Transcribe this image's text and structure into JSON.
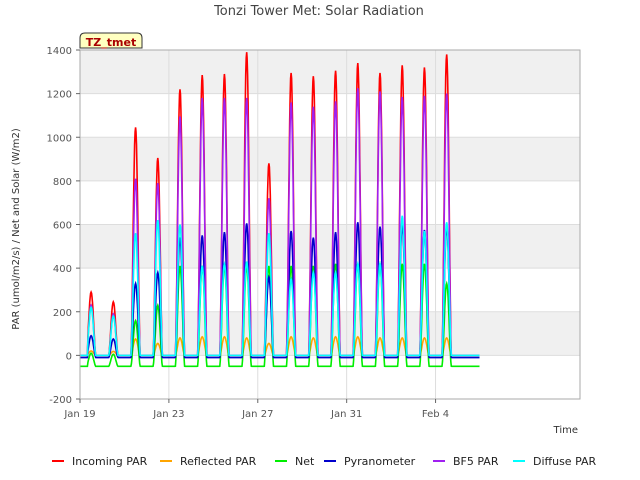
{
  "chart_data": {
    "type": "line",
    "title": "Tonzi Tower Met: Solar Radiation",
    "xlabel": "Time",
    "ylabel": "PAR (umol/m2/s) / Net and Solar (W/m2)",
    "badge": "TZ_tmet",
    "ylim": [
      -200,
      1400
    ],
    "yticks": [
      -200,
      0,
      200,
      400,
      600,
      800,
      1000,
      1200,
      1400
    ],
    "xlim": [
      0,
      22.5
    ],
    "xticks": [
      {
        "value": 0,
        "label": "Jan 19"
      },
      {
        "value": 4,
        "label": "Jan 23"
      },
      {
        "value": 8,
        "label": "Jan 27"
      },
      {
        "value": 12,
        "label": "Jan 31"
      },
      {
        "value": 16,
        "label": "Feb 4"
      }
    ],
    "x_unit_note": "x values are day positions on the time axis, day 0 = Jan 19 00:00",
    "grid": true,
    "legend_position": "bottom",
    "days": [
      0,
      1,
      2,
      3,
      4,
      5,
      6,
      7,
      8,
      9,
      10,
      11,
      12,
      13,
      14,
      15,
      16,
      17
    ],
    "series": [
      {
        "name": "Incoming PAR",
        "color": "#ff0000",
        "daily_peak": [
          290,
          245,
          1045,
          905,
          1220,
          1285,
          1290,
          1390,
          880,
          1295,
          1280,
          1305,
          1340,
          1295,
          1330,
          1320,
          1380,
          0
        ],
        "night": 0
      },
      {
        "name": "Reflected PAR",
        "color": "#ffa500",
        "daily_peak": [
          20,
          18,
          75,
          55,
          80,
          85,
          85,
          80,
          55,
          85,
          80,
          85,
          85,
          80,
          80,
          80,
          80,
          0
        ],
        "night": 0
      },
      {
        "name": "Net",
        "color": "#00ee00",
        "daily_peak": [
          10,
          5,
          160,
          230,
          410,
          410,
          410,
          410,
          410,
          410,
          410,
          420,
          420,
          420,
          420,
          420,
          330,
          0
        ],
        "night": -50
      },
      {
        "name": "Pyranometer",
        "color": "#0000cc",
        "daily_peak": [
          90,
          75,
          330,
          380,
          540,
          550,
          565,
          605,
          360,
          570,
          540,
          565,
          610,
          590,
          600,
          575,
          590,
          0
        ],
        "night": -10
      },
      {
        "name": "BF5 PAR",
        "color": "#a020f0",
        "daily_peak": [
          230,
          190,
          810,
          790,
          1095,
          1180,
          1180,
          1180,
          720,
          1160,
          1140,
          1165,
          1225,
          1210,
          1185,
          1190,
          1200,
          0
        ],
        "night": 0
      },
      {
        "name": "Diffuse PAR",
        "color": "#00ffff",
        "daily_peak": [
          220,
          180,
          560,
          620,
          600,
          410,
          420,
          430,
          560,
          350,
          380,
          380,
          420,
          420,
          640,
          570,
          610,
          0
        ],
        "night": 0
      }
    ]
  }
}
